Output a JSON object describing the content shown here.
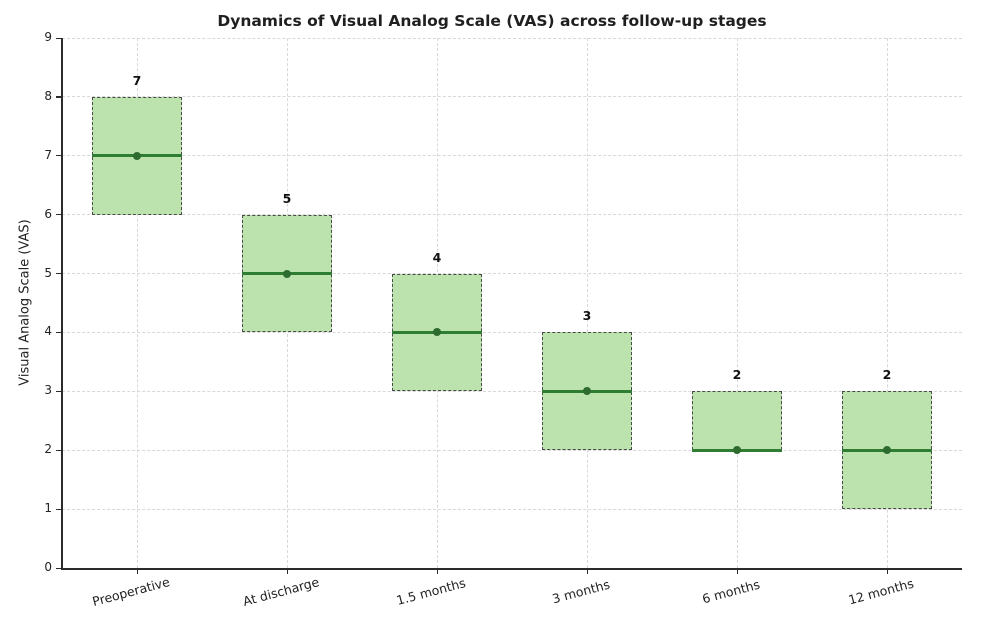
{
  "chart_data": {
    "type": "box",
    "title": "Dynamics of Visual Analog Scale (VAS) across follow-up stages",
    "xlabel": "",
    "ylabel": "Visual Analog Scale (VAS)",
    "ylim": [
      0,
      9
    ],
    "yticks": [
      0,
      1,
      2,
      3,
      4,
      5,
      6,
      7,
      8,
      9
    ],
    "grid": "dashed-both-axes",
    "legend": "none",
    "categories": [
      "Preoperative",
      "At discharge",
      "1.5 months",
      "3 months",
      "6 months",
      "12 months"
    ],
    "boxes": [
      {
        "category": "Preoperative",
        "low": 6,
        "high": 8,
        "median": 7,
        "label": "7"
      },
      {
        "category": "At discharge",
        "low": 4,
        "high": 6,
        "median": 5,
        "label": "5"
      },
      {
        "category": "1.5 months",
        "low": 3,
        "high": 5,
        "median": 4,
        "label": "4"
      },
      {
        "category": "3 months",
        "low": 2,
        "high": 4,
        "median": 3,
        "label": "3"
      },
      {
        "category": "6 months",
        "low": 2,
        "high": 3,
        "median": 2,
        "label": "2"
      },
      {
        "category": "12 months",
        "low": 1,
        "high": 3,
        "median": 2,
        "label": "2"
      }
    ],
    "colors": {
      "box_fill": "#bce3ae",
      "box_border": "#4a4a4a",
      "median": "#2e7d32",
      "dot": "#2e6b2e",
      "grid": "#d8d8d8",
      "axis": "#2b2b2b",
      "title": "#1f1f1f"
    }
  }
}
